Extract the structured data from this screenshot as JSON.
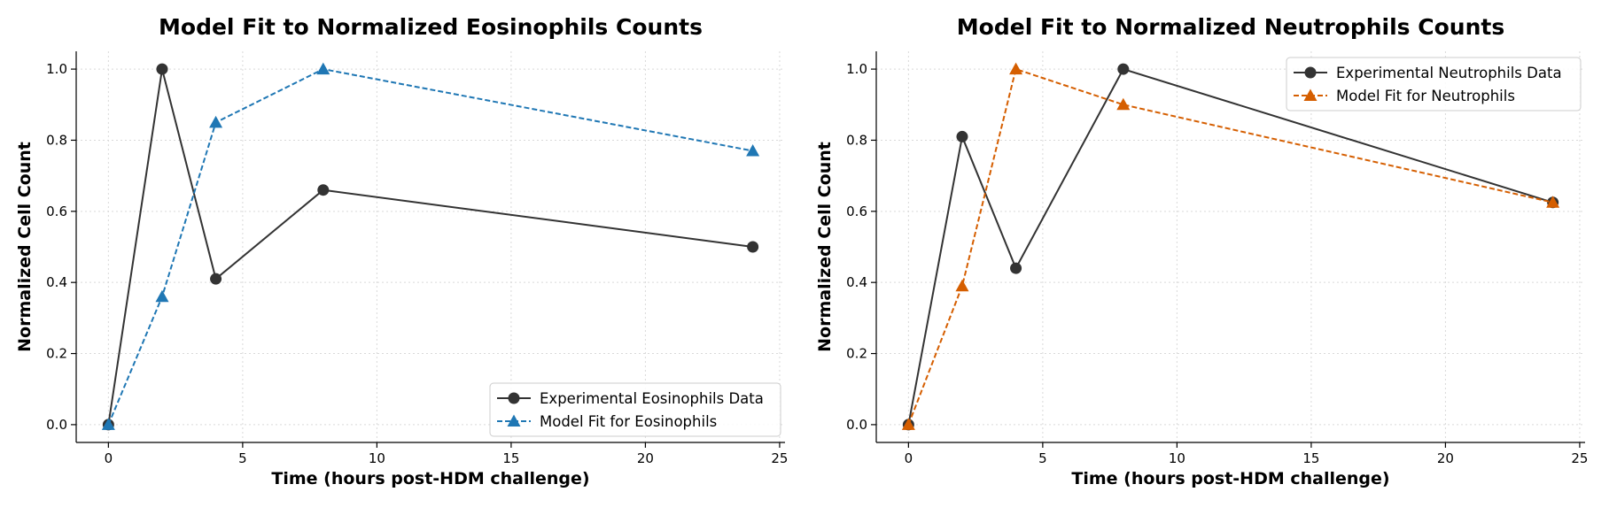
{
  "chart_data": [
    {
      "type": "line",
      "title": "Model Fit to Normalized Eosinophils Counts",
      "xlabel": "Time (hours post-HDM challenge)",
      "ylabel": "Normalized Cell Count",
      "xlim": [
        -1.2,
        25.2
      ],
      "ylim": [
        -0.05,
        1.05
      ],
      "xticks": [
        0,
        5,
        10,
        15,
        20,
        25
      ],
      "yticks": [
        0.0,
        0.2,
        0.4,
        0.6,
        0.8,
        1.0
      ],
      "grid": true,
      "legend_position": "lower-right",
      "series": [
        {
          "name": "Experimental Eosinophils Data",
          "x": [
            0,
            2,
            4,
            8,
            24
          ],
          "y": [
            0.0,
            1.0,
            0.41,
            0.66,
            0.5
          ],
          "color": "#333333",
          "marker": "circle",
          "line": "solid"
        },
        {
          "name": "Model Fit for Eosinophils",
          "x": [
            0,
            2,
            4,
            8,
            24
          ],
          "y": [
            0.0,
            0.36,
            0.85,
            1.0,
            0.77
          ],
          "color": "#1f77b4",
          "marker": "triangle",
          "line": "dashed"
        }
      ]
    },
    {
      "type": "line",
      "title": "Model Fit to Normalized Neutrophils Counts",
      "xlabel": "Time (hours post-HDM challenge)",
      "ylabel": "Normalized Cell Count",
      "xlim": [
        -1.2,
        25.2
      ],
      "ylim": [
        -0.05,
        1.05
      ],
      "xticks": [
        0,
        5,
        10,
        15,
        20,
        25
      ],
      "yticks": [
        0.0,
        0.2,
        0.4,
        0.6,
        0.8,
        1.0
      ],
      "grid": true,
      "legend_position": "upper-right",
      "series": [
        {
          "name": "Experimental Neutrophils Data",
          "x": [
            0,
            2,
            4,
            8,
            24
          ],
          "y": [
            0.0,
            0.81,
            0.44,
            1.0,
            0.625
          ],
          "color": "#333333",
          "marker": "circle",
          "line": "solid"
        },
        {
          "name": "Model Fit for Neutrophils",
          "x": [
            0,
            2,
            4,
            8,
            24
          ],
          "y": [
            0.0,
            0.39,
            1.0,
            0.9,
            0.625
          ],
          "color": "#d55e00",
          "marker": "triangle",
          "line": "dashed"
        }
      ]
    }
  ]
}
